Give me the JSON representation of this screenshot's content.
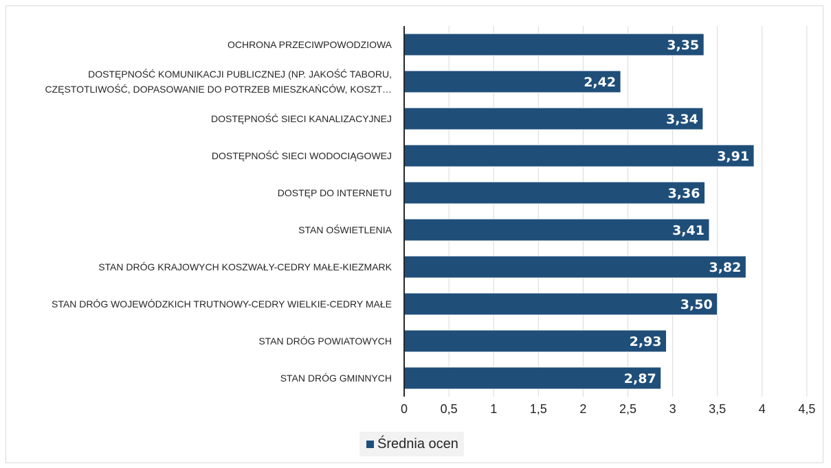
{
  "chart_data": {
    "type": "bar",
    "orientation": "horizontal",
    "categories": [
      [
        "OCHRONA PRZECIWPOWODZIOWA"
      ],
      [
        "DOSTĘPNOŚĆ KOMUNIKACJI PUBLICZNEJ (NP. JAKOŚĆ TABORU,",
        "CZĘSTOTLIWOŚĆ, DOPASOWANIE DO POTRZEB MIESZKAŃCÓW, KOSZT…"
      ],
      [
        "DOSTĘPNOŚĆ SIECI KANALIZACYJNEJ"
      ],
      [
        "DOSTĘPNOŚĆ SIECI WODOCIĄGOWEJ"
      ],
      [
        "DOSTĘP DO INTERNETU"
      ],
      [
        "STAN OŚWIETLENIA"
      ],
      [
        "STAN DRÓG KRAJOWYCH KOSZWAŁY-CEDRY MAŁE-KIEZMARK"
      ],
      [
        "STAN DRÓG WOJEWÓDZKICH TRUTNOWY-CEDRY WIELKIE-CEDRY MAŁE"
      ],
      [
        "STAN DRÓG POWIATOWYCH"
      ],
      [
        "STAN DRÓG GMINNYCH"
      ]
    ],
    "series": [
      {
        "name": "Średnia ocen",
        "color": "#1f4e79",
        "values": [
          3.35,
          2.42,
          3.34,
          3.91,
          3.36,
          3.41,
          3.82,
          3.5,
          2.93,
          2.87
        ],
        "value_labels": [
          "3,35",
          "2,42",
          "3,34",
          "3,91",
          "3,36",
          "3,41",
          "3,82",
          "3,50",
          "2,93",
          "2,87"
        ]
      }
    ],
    "xlim": [
      0,
      4.5
    ],
    "x_ticks": [
      0,
      0.5,
      1,
      1.5,
      2,
      2.5,
      3,
      3.5,
      4,
      4.5
    ],
    "x_tick_labels": [
      "0",
      "0,5",
      "1",
      "1,5",
      "2",
      "2,5",
      "3",
      "3,5",
      "4",
      "4,5"
    ],
    "grid": "vertical",
    "gridline_color": "#d9d9d9",
    "axis_color": "#262626",
    "legend_position": "bottom",
    "legend_background": "#f2f2f2",
    "title": "",
    "xlabel": "",
    "ylabel": ""
  }
}
